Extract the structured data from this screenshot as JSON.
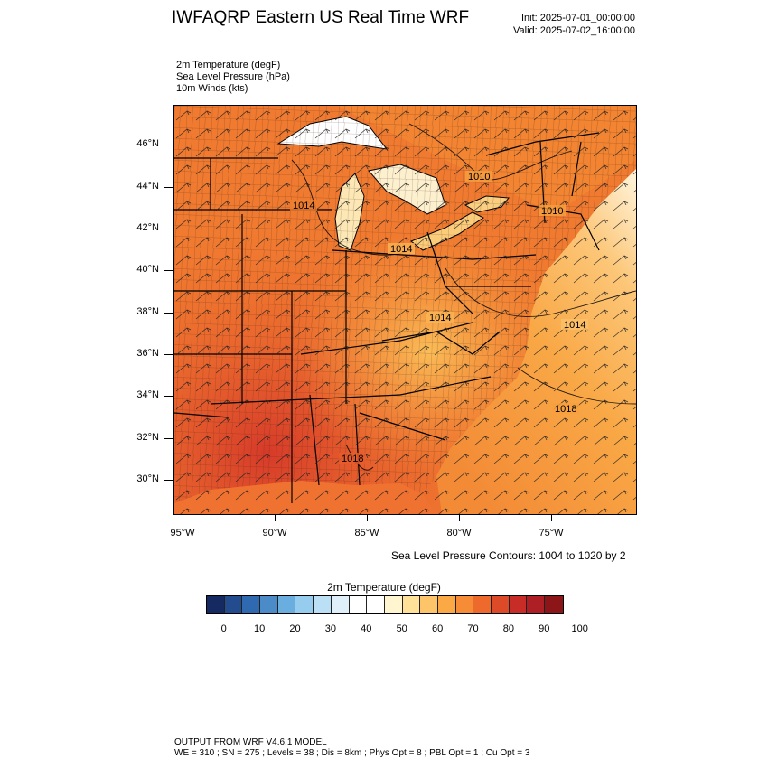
{
  "header": {
    "title": "IWFAQRP Eastern US Real Time WRF",
    "init": "Init: 2025-07-01_00:00:00",
    "valid": "Valid: 2025-07-02_16:00:00"
  },
  "fields": [
    "2m Temperature   (degF)",
    "Sea Level Pressure   (hPa)",
    "10m Winds   (kts)"
  ],
  "map": {
    "lat_labels": [
      "46°N",
      "44°N",
      "42°N",
      "40°N",
      "38°N",
      "36°N",
      "34°N",
      "32°N",
      "30°N"
    ],
    "lon_labels": [
      "95°W",
      "90°W",
      "85°W",
      "80°W",
      "75°W"
    ],
    "pressure_labels": [
      "1010",
      "1014",
      "1014",
      "1014",
      "1014",
      "1018",
      "1018",
      "1010"
    ],
    "colors": {
      "hot": "#e2552b",
      "warm": "#f1812f",
      "mild": "#f7a940",
      "cool": "#fde3a0",
      "cold": "#ffffff",
      "lines": "#1a1a1a"
    }
  },
  "contour_info": "Sea Level Pressure Contours: 1004 to 1020 by 2",
  "colorbar": {
    "title": "2m Temperature  (degF)",
    "colors": [
      "#152a60",
      "#234c8f",
      "#2f69b0",
      "#4a8bc8",
      "#6aaedf",
      "#96ccee",
      "#bbe0f5",
      "#dff0fa",
      "#ffffff",
      "#ffffff",
      "#fff5cf",
      "#ffe198",
      "#fdc46a",
      "#fba944",
      "#f68c35",
      "#ed6a2c",
      "#dd4a28",
      "#c72c27",
      "#ad1f24",
      "#8c1517"
    ],
    "labels": [
      "0",
      "10",
      "20",
      "30",
      "40",
      "50",
      "60",
      "70",
      "80",
      "90",
      "100"
    ]
  },
  "footer": {
    "line1": "OUTPUT FROM WRF V4.6.1 MODEL",
    "line2": "WE = 310 ; SN = 275 ; Levels = 38 ; Dis = 8km ; Phys Opt = 8 ; PBL Opt = 1 ; Cu Opt = 3"
  }
}
